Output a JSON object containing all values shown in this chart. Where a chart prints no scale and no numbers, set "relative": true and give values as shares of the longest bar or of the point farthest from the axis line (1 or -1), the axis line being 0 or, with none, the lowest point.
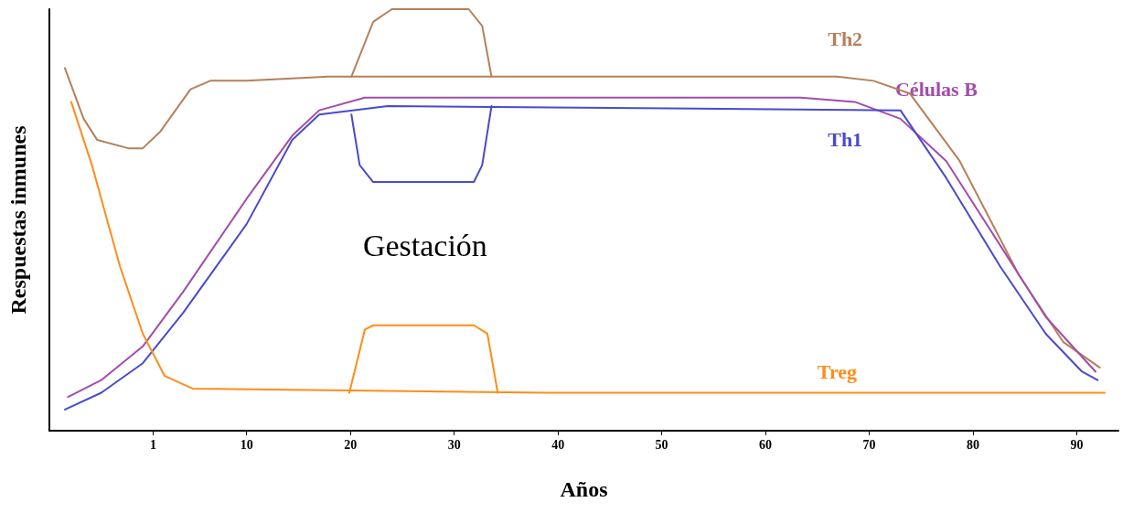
{
  "chart_data": {
    "type": "line",
    "xlabel": "Años",
    "ylabel": "Respuestas inmunes",
    "relative": true,
    "xlim": [
      -9,
      94
    ],
    "xticks": [
      1,
      10,
      20,
      30,
      40,
      50,
      60,
      70,
      80,
      90
    ],
    "grid": false,
    "legend": false,
    "marker": "none",
    "line_style": "solid",
    "annotations": [
      "Gestación"
    ],
    "series": [
      {
        "name": "Th2",
        "color": "#b5805a",
        "x": [
          -7.5,
          -5.7,
          -4.4,
          -1.4,
          0.0,
          1.7,
          4.6,
          6.5,
          10,
          17.9,
          66.9,
          70.4,
          73.9,
          78.7,
          84.4,
          88.7,
          92.2
        ],
        "values": [
          0.86,
          0.74,
          0.69,
          0.67,
          0.67,
          0.71,
          0.81,
          0.83,
          0.83,
          0.84,
          0.84,
          0.83,
          0.8,
          0.64,
          0.37,
          0.21,
          0.15
        ]
      },
      {
        "color": "#b5805a",
        "x": [
          20.1,
          22.2,
          24.0,
          31.4,
          32.7,
          33.6
        ],
        "values": [
          0.84,
          0.97,
          1.0,
          1.0,
          0.96,
          0.84
        ]
      },
      {
        "name": "Células B",
        "color": "#a14dab",
        "x": [
          -7.2,
          -4.0,
          0.0,
          3.9,
          10,
          14.4,
          17.0,
          21.4,
          63.4,
          68.6,
          73.0,
          77.4,
          82.6,
          87.0,
          91.8
        ],
        "values": [
          0.08,
          0.12,
          0.2,
          0.33,
          0.55,
          0.7,
          0.76,
          0.79,
          0.79,
          0.78,
          0.74,
          0.64,
          0.44,
          0.27,
          0.14
        ]
      },
      {
        "name": "Th1",
        "color": "#4a4acd",
        "x": [
          -7.5,
          -4.0,
          0.0,
          3.9,
          10,
          14.4,
          17.0,
          23.6,
          73.0,
          77.4,
          82.6,
          87.0,
          90.5,
          92.0
        ],
        "values": [
          0.05,
          0.09,
          0.16,
          0.28,
          0.49,
          0.69,
          0.75,
          0.77,
          0.76,
          0.6,
          0.39,
          0.23,
          0.14,
          0.12
        ]
      },
      {
        "color": "#4a4acd",
        "x": [
          20.1,
          20.9,
          22.2,
          31.9,
          32.7,
          33.6
        ],
        "values": [
          0.75,
          0.63,
          0.59,
          0.59,
          0.63,
          0.77
        ]
      },
      {
        "name": "Treg",
        "color": "#ff8c1a",
        "x": [
          -6.9,
          -4.9,
          -2.2,
          0.0,
          2.1,
          4.8,
          38.9,
          92.7
        ],
        "values": [
          0.78,
          0.63,
          0.39,
          0.23,
          0.13,
          0.1,
          0.09,
          0.09
        ]
      },
      {
        "color": "#ff8c1a",
        "x": [
          19.9,
          21.4,
          22.2,
          31.9,
          33.2,
          34.2
        ],
        "values": [
          0.09,
          0.24,
          0.25,
          0.25,
          0.23,
          0.09
        ]
      }
    ]
  }
}
